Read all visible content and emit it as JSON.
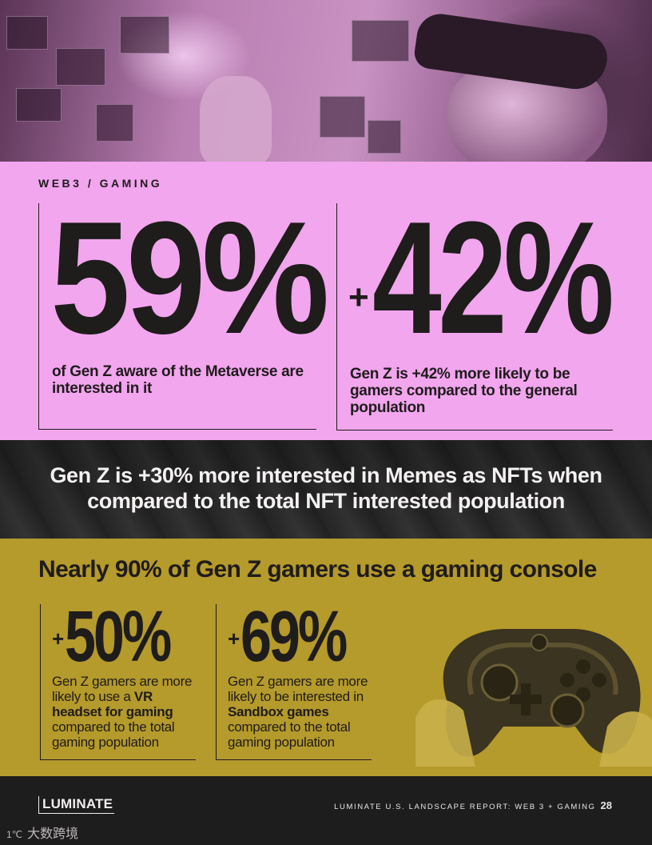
{
  "hero": {
    "image": "person-wearing-vr-headset-with-floating-screens"
  },
  "section_label": "WEB3 / GAMING",
  "stats_top": [
    {
      "value": "59%",
      "description": "of Gen Z aware of the Metaverse are interested in it"
    },
    {
      "prefix": "+",
      "value": "42%",
      "description": "Gen Z is +42% more likely to be gamers compared to the general population"
    }
  ],
  "banner": {
    "text": "Gen Z is +30% more interested in Memes as NFTs when compared to the total NFT interested population"
  },
  "console": {
    "title": "Nearly 90% of Gen Z gamers use a gaming console",
    "stats": [
      {
        "prefix": "+",
        "value": "50%",
        "desc_1": "Gen Z gamers are more likely to use a ",
        "desc_bold": "VR headset for gaming",
        "desc_2": " compared to the total gaming population"
      },
      {
        "prefix": "+",
        "value": "69%",
        "desc_1": "Gen Z gamers are more likely to be interested in ",
        "desc_bold": "Sandbox games",
        "desc_2": " compared to the total gaming population"
      }
    ],
    "image": "hands-holding-game-controller"
  },
  "footer": {
    "logo": "LUMINATE",
    "caption": "LUMINATE U.S. LANDSCAPE REPORT: WEB 3 + GAMING",
    "page_number": "28",
    "watermark": "大数跨境"
  },
  "colors": {
    "pink": "#f2a6ee",
    "olive": "#b59a2c",
    "dark": "#1e1d1d",
    "ink": "#1f1c1c"
  }
}
